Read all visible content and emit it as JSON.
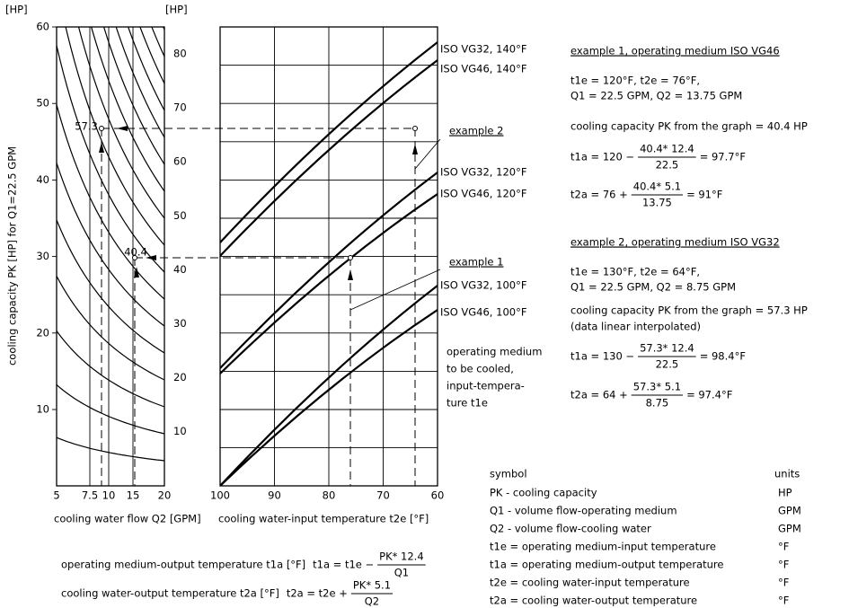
{
  "left_graph": {
    "unit_left": "[HP]",
    "unit_right": "[HP]",
    "y_ticks": [
      "60",
      "50",
      "40",
      "30",
      "20",
      "10"
    ],
    "y2_ticks": [
      "80",
      "70",
      "60",
      "50",
      "40",
      "30",
      "20",
      "10"
    ],
    "x_ticks": [
      "5",
      "7.5",
      "10",
      "15",
      "20"
    ],
    "y_label": "cooling capacity PK [HP] for Q1=22.5 GPM",
    "x_label": "cooling water flow Q2 [GPM]",
    "marker_labels": [
      "57.3",
      "40.4"
    ]
  },
  "middle_graph": {
    "x_ticks": [
      "100",
      "90",
      "80",
      "70",
      "60"
    ],
    "x_label": "cooling water-input temperature t2e [°F]",
    "curve_labels": [
      "ISO VG32, 140°F",
      "ISO VG46, 140°F",
      "ISO VG32, 120°F",
      "ISO VG46, 120°F",
      "ISO VG32, 100°F",
      "ISO VG46, 100°F"
    ],
    "example_labels": [
      "example 2",
      "example 1"
    ],
    "note": [
      "operating medium",
      "to be cooled,",
      "input-tempera-",
      "ture t1e"
    ]
  },
  "formulas": [
    {
      "label": "operating medium-output temperature t1a [°F]",
      "prefix": "t1a = t1e −",
      "numerator": "PK* 12.4",
      "denominator": "Q1"
    },
    {
      "label": "cooling water-output temperature t2a [°F]",
      "prefix": "t2a = t2e +",
      "numerator": "PK* 5.1",
      "denominator": "Q2"
    }
  ],
  "examples": [
    {
      "title": "example 1, operating medium ISO VG46",
      "given": [
        "t1e = 120°F,    t2e = 76°F,",
        "Q1 = 22.5 GPM, Q2 = 13.75 GPM"
      ],
      "capacity": "cooling capacity PK from the graph = 40.4 HP",
      "calcs": [
        {
          "prefix": "t1a = 120 −",
          "numerator": "40.4* 12.4",
          "denominator": "22.5",
          "suffix": "= 97.7°F"
        },
        {
          "prefix": "t2a = 76 +",
          "numerator": "40.4* 5.1",
          "denominator": "13.75",
          "suffix": "= 91°F"
        }
      ]
    },
    {
      "title": "example 2, operating medium ISO VG32",
      "given": [
        "t1e = 130°F,    t2e = 64°F,",
        "Q1 = 22.5 GPM, Q2 = 8.75 GPM"
      ],
      "capacity": "cooling capacity PK from the graph = 57.3 HP",
      "note": "(data linear interpolated)",
      "calcs": [
        {
          "prefix": "t1a = 130 −",
          "numerator": "57.3* 12.4",
          "denominator": "22.5",
          "suffix": "= 98.4°F"
        },
        {
          "prefix": "t2a = 64 +",
          "numerator": "57.3* 5.1",
          "denominator": "8.75",
          "suffix": "= 97.4°F"
        }
      ]
    }
  ],
  "symbols": {
    "header": [
      "symbol",
      "units"
    ],
    "rows": [
      {
        "text": "PK  -  cooling capacity",
        "unit": "HP"
      },
      {
        "text": "Q1  -  volume flow-operating medium",
        "unit": "GPM"
      },
      {
        "text": "Q2  -  volume flow-cooling water",
        "unit": "GPM"
      },
      {
        "text": "t1e = operating medium-input temperature",
        "unit": "°F"
      },
      {
        "text": "t1a = operating medium-output temperature",
        "unit": "°F"
      },
      {
        "text": "t2e = cooling water-input temperature",
        "unit": "°F"
      },
      {
        "text": "t2a = cooling water-output temperature",
        "unit": "°F"
      }
    ]
  }
}
